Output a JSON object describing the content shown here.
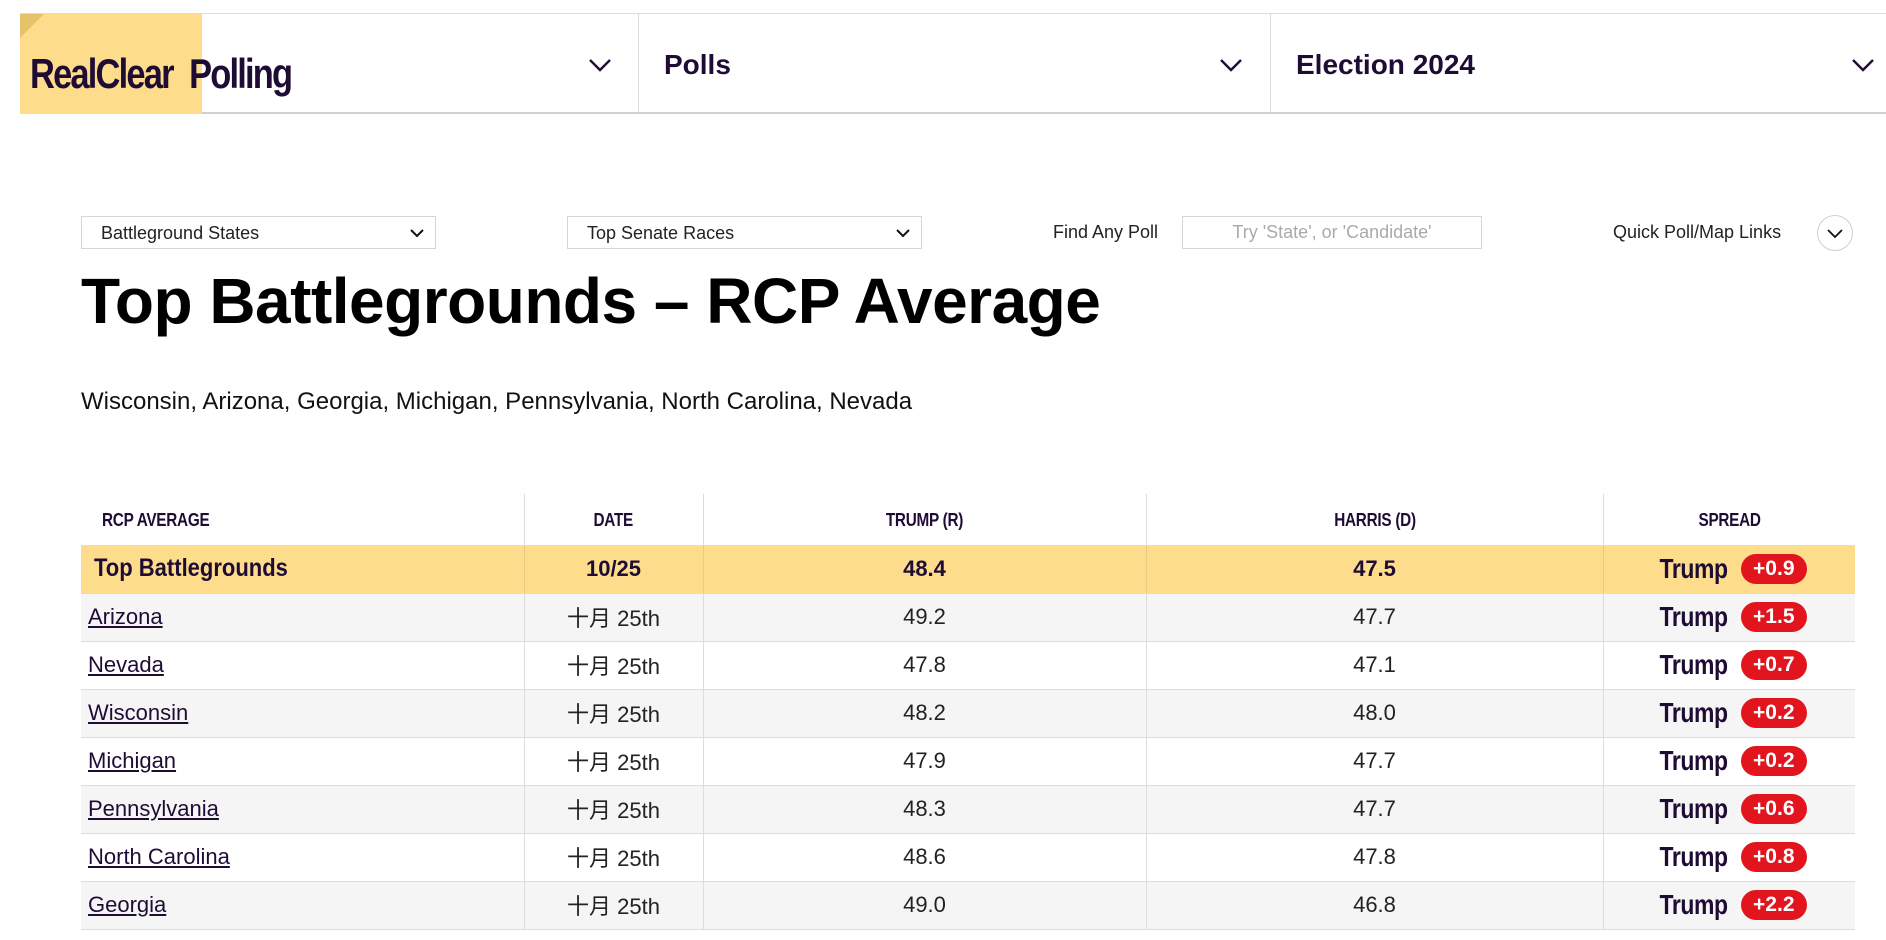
{
  "header": {
    "logo_part1": "RealClear",
    "logo_part2": "Polling",
    "nav": [
      {
        "label": "Polls"
      },
      {
        "label": "Election 2024"
      }
    ]
  },
  "controls": {
    "select1": "Battleground States",
    "select2": "Top Senate Races",
    "find_label": "Find Any Poll",
    "find_placeholder": "Try 'State', or 'Candidate'",
    "quick_links_label": "Quick Poll/Map Links"
  },
  "page": {
    "title": "Top Battlegrounds – RCP Average",
    "subtitle": "Wisconsin, Arizona, Georgia, Michigan, Pennsylvania, North Carolina, Nevada"
  },
  "table": {
    "columns": [
      "RCP AVERAGE",
      "DATE",
      "TRUMP (R)",
      "HARRIS (D)",
      "SPREAD"
    ],
    "average_row": {
      "name": "Top Battlegrounds",
      "date": "10/25",
      "trump": "48.4",
      "harris": "47.5",
      "spread_name": "Trump",
      "spread_value": "+0.9"
    },
    "rows": [
      {
        "name": "Arizona",
        "date": "十月 25th",
        "trump": "49.2",
        "harris": "47.7",
        "spread_name": "Trump",
        "spread_value": "+1.5"
      },
      {
        "name": "Nevada",
        "date": "十月 25th",
        "trump": "47.8",
        "harris": "47.1",
        "spread_name": "Trump",
        "spread_value": "+0.7"
      },
      {
        "name": "Wisconsin",
        "date": "十月 25th",
        "trump": "48.2",
        "harris": "48.0",
        "spread_name": "Trump",
        "spread_value": "+0.2"
      },
      {
        "name": "Michigan",
        "date": "十月 25th",
        "trump": "47.9",
        "harris": "47.7",
        "spread_name": "Trump",
        "spread_value": "+0.2"
      },
      {
        "name": "Pennsylvania",
        "date": "十月 25th",
        "trump": "48.3",
        "harris": "47.7",
        "spread_name": "Trump",
        "spread_value": "+0.6"
      },
      {
        "name": "North Carolina",
        "date": "十月 25th",
        "trump": "48.6",
        "harris": "47.8",
        "spread_name": "Trump",
        "spread_value": "+0.8"
      },
      {
        "name": "Georgia",
        "date": "十月 25th",
        "trump": "49.0",
        "harris": "46.8",
        "spread_name": "Trump",
        "spread_value": "+2.2"
      }
    ]
  },
  "colors": {
    "brand_yellow": "#fddd8b",
    "brand_purple": "#1e0c35",
    "spread_red": "#e2141d"
  },
  "icons": {
    "dropdown": "chevron-down-icon"
  }
}
